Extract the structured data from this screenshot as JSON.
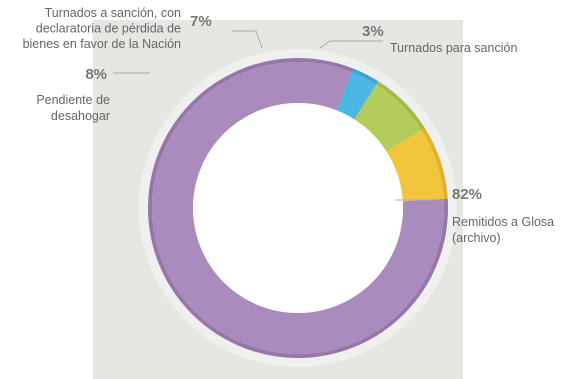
{
  "chart_data": {
    "type": "pie",
    "subtype": "donut",
    "slices": [
      {
        "label": [
          "Remitidos a Glosa",
          "(archivo)"
        ],
        "value": 82,
        "pct_text": "82%",
        "color": "#a98bbd",
        "edge_color": "#9577ab"
      },
      {
        "label": [
          "Pendiente de",
          "desahogar"
        ],
        "value": 8,
        "pct_text": "8%",
        "color": "#f2c53d",
        "edge_color": "#e0b12c"
      },
      {
        "label": [
          "Turnados a sanción, con",
          "declaratoria de pérdida de",
          "bienes en favor de la Nación"
        ],
        "value": 7,
        "pct_text": "7%",
        "color": "#b4cc5c",
        "edge_color": "#a2bb49"
      },
      {
        "label": [
          "Turnados para sanción"
        ],
        "value": 3,
        "pct_text": "3%",
        "color": "#4eb6e3",
        "edge_color": "#3aa4d2"
      }
    ]
  }
}
